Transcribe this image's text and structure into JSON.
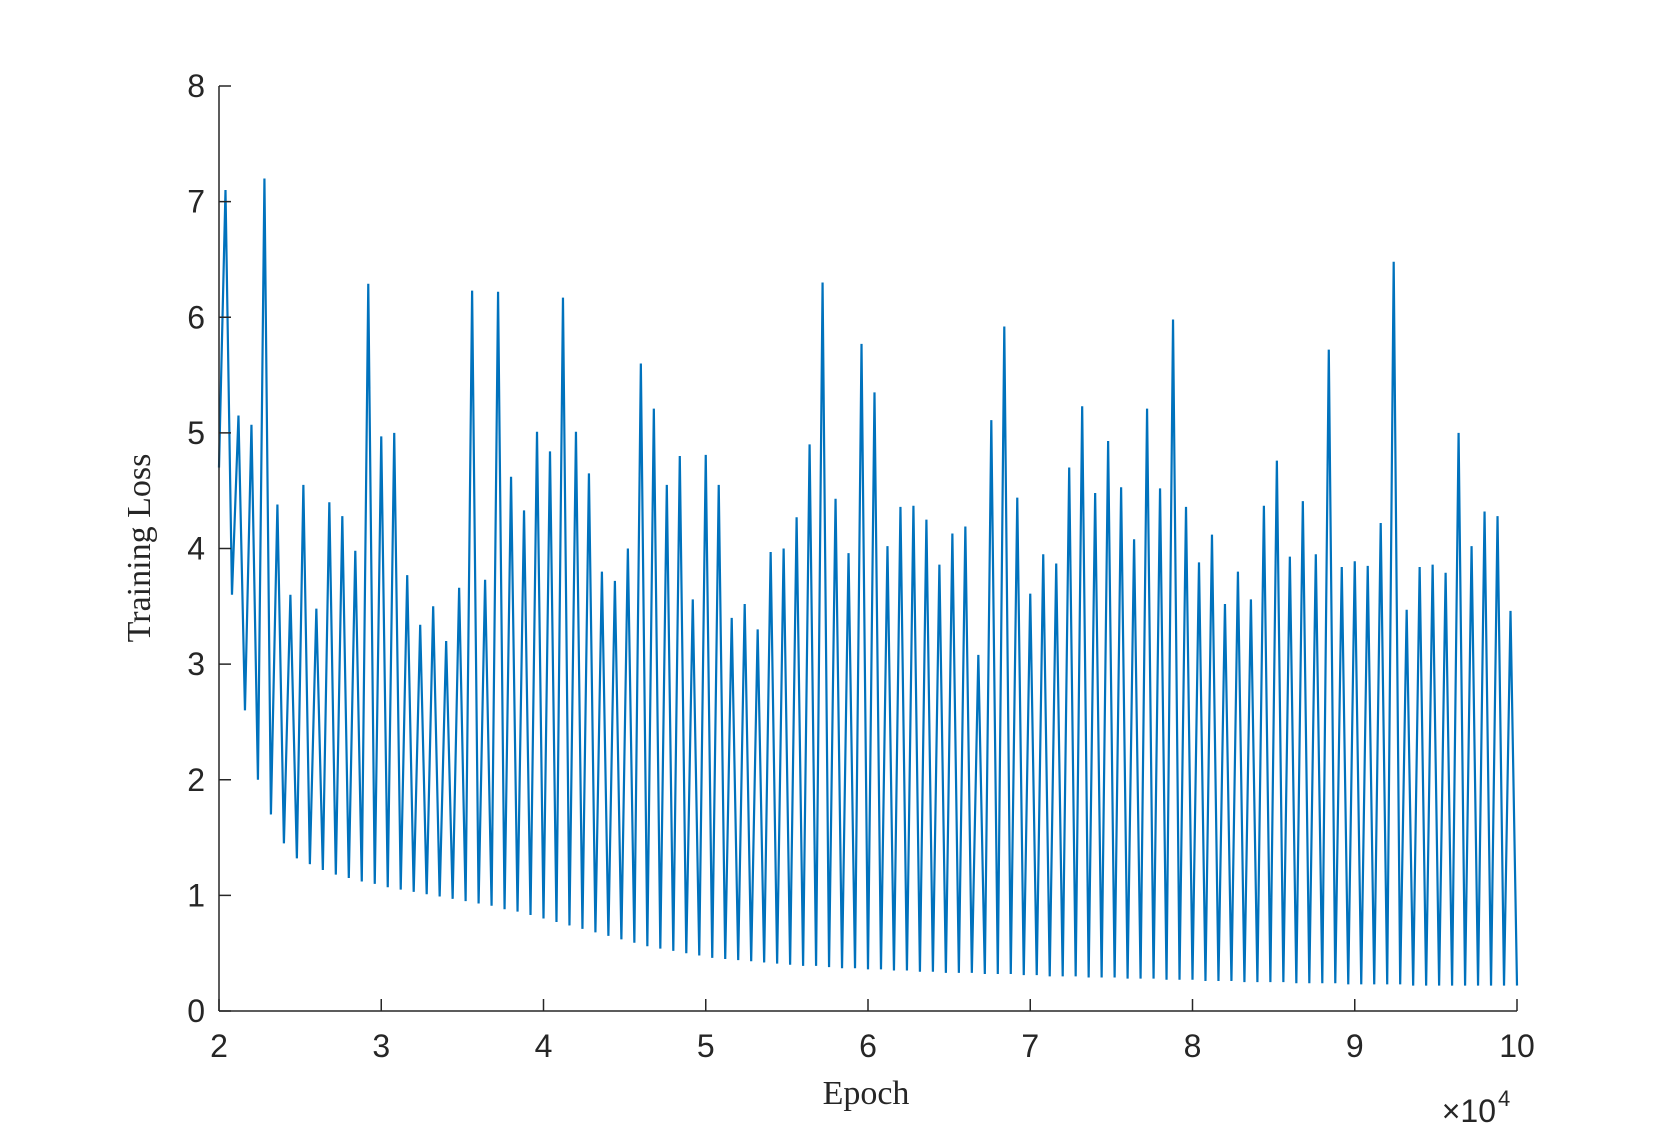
{
  "chart_data": {
    "type": "line",
    "x_label": "Epoch",
    "y_label": "Training Loss",
    "x_exponent": {
      "base": "×10",
      "power": "4"
    },
    "x": [
      20000,
      20400,
      20800,
      21200,
      21600,
      22000,
      22400,
      22800,
      23200,
      23600,
      24000,
      24400,
      24800,
      25200,
      25600,
      26000,
      26400,
      26800,
      27200,
      27600,
      28000,
      28400,
      28800,
      29200,
      29600,
      30000,
      30400,
      30800,
      31200,
      31600,
      32000,
      32400,
      32800,
      33200,
      33600,
      34000,
      34400,
      34800,
      35200,
      35600,
      36000,
      36400,
      36800,
      37200,
      37600,
      38000,
      38400,
      38800,
      39200,
      39600,
      40000,
      40400,
      40800,
      41200,
      41600,
      42000,
      42400,
      42800,
      43200,
      43600,
      44000,
      44400,
      44800,
      45200,
      45600,
      46000,
      46400,
      46800,
      47200,
      47600,
      48000,
      48400,
      48800,
      49200,
      49600,
      50000,
      50400,
      50800,
      51200,
      51600,
      52000,
      52400,
      52800,
      53200,
      53600,
      54000,
      54400,
      54800,
      55200,
      55600,
      56000,
      56400,
      56800,
      57200,
      57600,
      58000,
      58400,
      58800,
      59200,
      59600,
      60000,
      60400,
      60800,
      61200,
      61600,
      62000,
      62400,
      62800,
      63200,
      63600,
      64000,
      64400,
      64800,
      65200,
      65600,
      66000,
      66400,
      66800,
      67200,
      67600,
      68000,
      68400,
      68800,
      69200,
      69600,
      70000,
      70400,
      70800,
      71200,
      71600,
      72000,
      72400,
      72800,
      73200,
      73600,
      74000,
      74400,
      74800,
      75200,
      75600,
      76000,
      76400,
      76800,
      77200,
      77600,
      78000,
      78400,
      78800,
      79200,
      79600,
      80000,
      80400,
      80800,
      81200,
      81600,
      82000,
      82400,
      82800,
      83200,
      83600,
      84000,
      84400,
      84800,
      85200,
      85600,
      86000,
      86400,
      86800,
      87200,
      87600,
      88000,
      88400,
      88800,
      89200,
      89600,
      90000,
      90400,
      90800,
      91200,
      91600,
      92000,
      92400,
      92800,
      93200,
      93600,
      94000,
      94400,
      94800,
      95200,
      95600,
      96000,
      96400,
      96800,
      97200,
      97600,
      98000,
      98400,
      98800,
      99200,
      99600,
      100000
    ],
    "series": [
      {
        "color": "#0072bd",
        "values": [
          4.7,
          7.1,
          3.6,
          5.15,
          2.6,
          5.07,
          2.0,
          7.2,
          1.7,
          4.38,
          1.45,
          3.6,
          1.32,
          4.55,
          1.27,
          3.48,
          1.22,
          4.4,
          1.18,
          4.28,
          1.15,
          3.98,
          1.12,
          6.29,
          1.1,
          4.97,
          1.07,
          5.0,
          1.05,
          3.77,
          1.03,
          3.34,
          1.01,
          3.5,
          0.99,
          3.2,
          0.97,
          3.66,
          0.95,
          6.23,
          0.93,
          3.73,
          0.91,
          6.22,
          0.88,
          4.62,
          0.86,
          4.33,
          0.83,
          5.01,
          0.8,
          4.84,
          0.77,
          6.17,
          0.74,
          5.01,
          0.71,
          4.65,
          0.68,
          3.8,
          0.65,
          3.72,
          0.62,
          4.0,
          0.59,
          5.6,
          0.56,
          5.21,
          0.54,
          4.55,
          0.52,
          4.8,
          0.5,
          3.56,
          0.48,
          4.81,
          0.46,
          4.55,
          0.45,
          3.4,
          0.44,
          3.52,
          0.43,
          3.3,
          0.42,
          3.97,
          0.41,
          4.0,
          0.4,
          4.27,
          0.39,
          4.9,
          0.39,
          6.3,
          0.38,
          4.43,
          0.37,
          3.96,
          0.37,
          5.77,
          0.36,
          5.35,
          0.36,
          4.02,
          0.35,
          4.36,
          0.35,
          4.37,
          0.34,
          4.25,
          0.34,
          3.86,
          0.33,
          4.13,
          0.33,
          4.19,
          0.33,
          3.08,
          0.32,
          5.11,
          0.32,
          5.92,
          0.32,
          4.44,
          0.31,
          3.61,
          0.31,
          3.95,
          0.3,
          3.87,
          0.3,
          4.7,
          0.3,
          5.23,
          0.29,
          4.48,
          0.29,
          4.93,
          0.29,
          4.53,
          0.28,
          4.08,
          0.28,
          5.21,
          0.28,
          4.52,
          0.27,
          5.98,
          0.27,
          4.36,
          0.27,
          3.88,
          0.26,
          4.12,
          0.26,
          3.52,
          0.26,
          3.8,
          0.25,
          3.56,
          0.25,
          4.37,
          0.25,
          4.76,
          0.25,
          3.93,
          0.24,
          4.41,
          0.24,
          3.95,
          0.24,
          5.72,
          0.24,
          3.84,
          0.23,
          3.89,
          0.23,
          3.85,
          0.23,
          4.22,
          0.23,
          6.48,
          0.23,
          3.47,
          0.22,
          3.84,
          0.22,
          3.86,
          0.22,
          3.79,
          0.22,
          5.0,
          0.22,
          4.02,
          0.22,
          4.32,
          0.22,
          4.28,
          0.22,
          3.46,
          0.22
        ]
      }
    ],
    "xlim": [
      20000,
      100000
    ],
    "xticks": [
      {
        "value": 20000,
        "label": "2"
      },
      {
        "value": 30000,
        "label": "3"
      },
      {
        "value": 40000,
        "label": "4"
      },
      {
        "value": 50000,
        "label": "5"
      },
      {
        "value": 60000,
        "label": "6"
      },
      {
        "value": 70000,
        "label": "7"
      },
      {
        "value": 80000,
        "label": "8"
      },
      {
        "value": 90000,
        "label": "9"
      },
      {
        "value": 100000,
        "label": "10"
      }
    ],
    "ylim": [
      0,
      8
    ],
    "yticks": [
      0,
      1,
      2,
      3,
      4,
      5,
      6,
      7,
      8
    ],
    "grid": false
  }
}
